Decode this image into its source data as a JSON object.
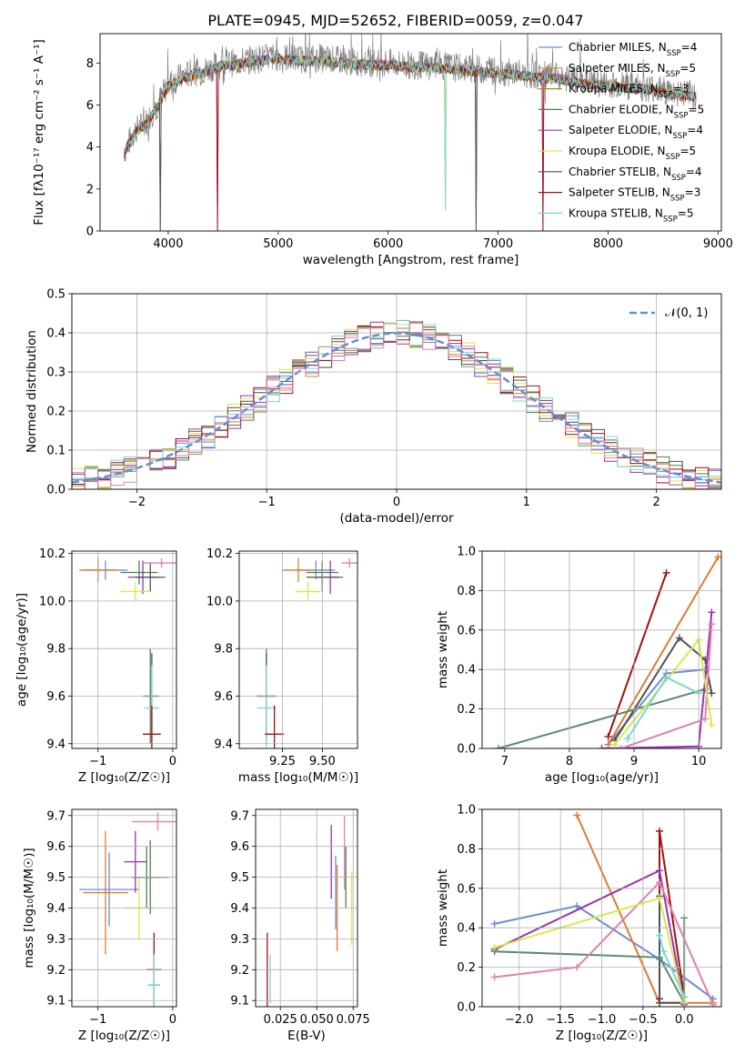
{
  "figure_title": "PLATE=0945, MJD=52652, FIBERID=0059, z=0.047",
  "colors": {
    "series": [
      "#6a8fd6",
      "#e07b2e",
      "#a08a2a",
      "#4e7f4e",
      "#9b30b0",
      "#d9e84a",
      "#505050",
      "#a01010",
      "#78d8d8",
      "#e080b0",
      "#5a8a6a"
    ],
    "data_spectrum": "#808080",
    "grid": "#b0b0b0",
    "normal_curve": "#5f8fd8"
  },
  "chart_data": [
    {
      "id": "spectrum",
      "type": "line",
      "title": "PLATE=0945, MJD=52652, FIBERID=0059, z=0.047",
      "xlabel": "wavelength [Angstrom, rest frame]",
      "ylabel": "Flux [fλ10⁻¹⁷ erg cm⁻² s⁻¹ A⁻¹]",
      "xlim": [
        3380,
        9030
      ],
      "ylim": [
        0,
        9.4
      ],
      "xticks": [
        "4000",
        "5000",
        "6000",
        "7000",
        "8000",
        "9000"
      ],
      "yticks": [
        "0",
        "2",
        "4",
        "6",
        "8"
      ],
      "grid": false,
      "legend_position": "right",
      "legend": [
        "Chabrier MILES, N",
        "Salpeter MILES, N",
        "Kroupa MILES, N",
        "Chabrier ELODIE, N",
        "Salpeter ELODIE, N",
        "Kroupa ELODIE, N",
        "Chabrier STELIB, N",
        "Salpeter STELIB, N",
        "Kroupa STELIB, N"
      ],
      "legend_sub": "SSP",
      "legend_n": [
        "=4",
        "=5",
        "=3",
        "=5",
        "=4",
        "=5",
        "=4",
        "=3",
        "=5"
      ],
      "continuum_x": [
        3600,
        3650,
        3700,
        3750,
        3800,
        3850,
        3900,
        3950,
        4000,
        4100,
        4200,
        4300,
        4400,
        4500,
        4600,
        4800,
        5000,
        5200,
        5400,
        5600,
        5800,
        6000,
        6200,
        6400,
        6600,
        6800,
        7000,
        7200,
        7400,
        7600,
        7800,
        8000,
        8200,
        8400,
        8600,
        8800
      ],
      "continuum_y": [
        3.8,
        4.3,
        4.8,
        5.0,
        5.2,
        5.6,
        6.0,
        6.5,
        7.0,
        7.3,
        7.5,
        7.6,
        7.8,
        8.0,
        8.0,
        8.2,
        8.3,
        8.2,
        8.2,
        8.1,
        8.0,
        8.0,
        7.9,
        7.9,
        7.8,
        7.7,
        7.6,
        7.5,
        7.4,
        7.3,
        7.1,
        7.0,
        6.9,
        6.8,
        6.6,
        6.5
      ],
      "spikes_x": [
        3930,
        4450,
        6520,
        6800,
        7410
      ],
      "spikes_y": [
        0,
        0,
        1.0,
        0,
        0
      ]
    },
    {
      "id": "residuals",
      "type": "line",
      "xlabel": "(data-model)/error",
      "ylabel": "Normed distribution",
      "xlim": [
        -2.5,
        2.5
      ],
      "ylim": [
        0,
        0.5
      ],
      "xticks": [
        "−2",
        "−1",
        "0",
        "1",
        "2"
      ],
      "yticks": [
        "0.0",
        "0.1",
        "0.2",
        "0.3",
        "0.4",
        "0.5"
      ],
      "grid": true,
      "legend": [
        "𝒩(0, 1)"
      ],
      "legend_position": "top-right",
      "bin_width": 0.1
    },
    {
      "id": "age_vs_Z",
      "type": "scatter",
      "xlabel": "Z [log₁₀(Z/Z☉)]",
      "ylabel": "age  [log₁₀(age/yr)]",
      "xlim": [
        -1.35,
        0.05
      ],
      "ylim": [
        9.38,
        10.21
      ],
      "xticks": [
        "−1",
        "0"
      ],
      "yticks": [
        "9.4",
        "9.6",
        "9.8",
        "10.0",
        "10.2"
      ],
      "grid": true,
      "points": [
        {
          "x": -0.9,
          "y": 10.13,
          "xerr": 0.3,
          "yerr": 0.04,
          "c": 0
        },
        {
          "x": -1.0,
          "y": 10.13,
          "xerr": 0.25,
          "yerr": 0.05,
          "c": 1
        },
        {
          "x": -0.45,
          "y": 10.12,
          "xerr": 0.25,
          "yerr": 0.05,
          "c": 3
        },
        {
          "x": -0.4,
          "y": 10.1,
          "xerr": 0.2,
          "yerr": 0.07,
          "c": 4
        },
        {
          "x": -0.3,
          "y": 10.1,
          "xerr": 0.2,
          "yerr": 0.06,
          "c": 6
        },
        {
          "x": -0.15,
          "y": 10.16,
          "xerr": 0.25,
          "yerr": 0.02,
          "c": 9
        },
        {
          "x": -0.5,
          "y": 10.04,
          "xerr": 0.2,
          "yerr": 0.04,
          "c": 5
        },
        {
          "x": -0.3,
          "y": 9.6,
          "xerr": 0.1,
          "yerr": 0.2,
          "c": 3
        },
        {
          "x": -0.28,
          "y": 9.6,
          "xerr": 0.1,
          "yerr": 0.18,
          "c": 6
        },
        {
          "x": -0.28,
          "y": 9.55,
          "xerr": 0.1,
          "yerr": 0.18,
          "c": 8
        },
        {
          "x": -0.28,
          "y": 9.44,
          "xerr": 0.12,
          "yerr": 0.12,
          "c": 7
        }
      ]
    },
    {
      "id": "age_vs_mass",
      "type": "scatter",
      "xlabel": "mass [log₁₀(M/M☉)]",
      "xlim": [
        8.98,
        9.72
      ],
      "ylim": [
        9.38,
        10.21
      ],
      "xticks": [
        "9.25",
        "9.50"
      ],
      "yticks": [
        "9.4",
        "9.6",
        "9.8",
        "10.0",
        "10.2"
      ],
      "grid": true,
      "points": [
        {
          "x": 9.46,
          "y": 10.13,
          "xerr": 0.12,
          "yerr": 0.04,
          "c": 0
        },
        {
          "x": 9.35,
          "y": 10.13,
          "xerr": 0.1,
          "yerr": 0.05,
          "c": 1
        },
        {
          "x": 9.5,
          "y": 10.12,
          "xerr": 0.1,
          "yerr": 0.05,
          "c": 3
        },
        {
          "x": 9.55,
          "y": 10.1,
          "xerr": 0.08,
          "yerr": 0.07,
          "c": 4
        },
        {
          "x": 9.5,
          "y": 10.1,
          "xerr": 0.1,
          "yerr": 0.06,
          "c": 6
        },
        {
          "x": 9.67,
          "y": 10.16,
          "xerr": 0.05,
          "yerr": 0.02,
          "c": 9
        },
        {
          "x": 9.41,
          "y": 10.04,
          "xerr": 0.08,
          "yerr": 0.04,
          "c": 5
        },
        {
          "x": 9.15,
          "y": 9.6,
          "xerr": 0.06,
          "yerr": 0.2,
          "c": 3
        },
        {
          "x": 9.15,
          "y": 9.6,
          "xerr": 0.06,
          "yerr": 0.18,
          "c": 6
        },
        {
          "x": 9.15,
          "y": 9.55,
          "xerr": 0.06,
          "yerr": 0.18,
          "c": 8
        },
        {
          "x": 9.2,
          "y": 9.44,
          "xerr": 0.06,
          "yerr": 0.12,
          "c": 7
        }
      ]
    },
    {
      "id": "weight_vs_age",
      "type": "line",
      "xlabel": "age  [log₁₀(age/yr)]",
      "ylabel": "mass weight",
      "xlim": [
        6.65,
        10.35
      ],
      "ylim": [
        0,
        1.0
      ],
      "xticks": [
        "7",
        "8",
        "9",
        "10"
      ],
      "yticks": [
        "0.0",
        "0.2",
        "0.4",
        "0.6",
        "0.8",
        "1.0"
      ],
      "grid": true,
      "series": [
        {
          "c": 0,
          "x": [
            8.6,
            9.5,
            10.1
          ],
          "y": [
            0.02,
            0.38,
            0.4
          ]
        },
        {
          "c": 1,
          "x": [
            8.6,
            10.3
          ],
          "y": [
            0.02,
            0.97
          ]
        },
        {
          "c": 7,
          "x": [
            8.6,
            9.5
          ],
          "y": [
            0.06,
            0.89
          ]
        },
        {
          "c": 6,
          "x": [
            8.7,
            9.7,
            10.1,
            10.2
          ],
          "y": [
            0.04,
            0.56,
            0.45,
            0.28
          ]
        },
        {
          "c": 10,
          "x": [
            6.9,
            10.1
          ],
          "y": [
            0.0,
            0.3
          ]
        },
        {
          "c": 4,
          "x": [
            8.5,
            10.0,
            10.2
          ],
          "y": [
            0.0,
            0.01,
            0.69
          ]
        },
        {
          "c": 9,
          "x": [
            8.8,
            10.1,
            10.2
          ],
          "y": [
            0.0,
            0.15,
            0.63
          ]
        },
        {
          "c": 5,
          "x": [
            8.7,
            10.0,
            10.2
          ],
          "y": [
            0.02,
            0.55,
            0.12
          ]
        },
        {
          "c": 8,
          "x": [
            8.9,
            9.5,
            10.0
          ],
          "y": [
            0.05,
            0.36,
            0.28
          ]
        }
      ]
    },
    {
      "id": "mass_vs_Z",
      "type": "scatter",
      "xlabel": "Z [log₁₀(Z/Z☉)]",
      "ylabel": "mass [log₁₀(M/M☉)]",
      "xlim": [
        -1.35,
        0.05
      ],
      "ylim": [
        9.08,
        9.72
      ],
      "xticks": [
        "−1",
        "0"
      ],
      "yticks": [
        "9.1",
        "9.2",
        "9.3",
        "9.4",
        "9.5",
        "9.6",
        "9.7"
      ],
      "grid": true,
      "points": [
        {
          "x": -0.85,
          "y": 9.46,
          "xerr": 0.4,
          "yerr": 0.12,
          "c": 0
        },
        {
          "x": -0.9,
          "y": 9.45,
          "xerr": 0.3,
          "yerr": 0.2,
          "c": 1
        },
        {
          "x": -0.45,
          "y": 9.4,
          "xerr": 0.2,
          "yerr": 0.1,
          "c": 5
        },
        {
          "x": -0.35,
          "y": 9.5,
          "xerr": 0.2,
          "yerr": 0.1,
          "c": 3
        },
        {
          "x": -0.3,
          "y": 9.5,
          "xerr": 0.25,
          "yerr": 0.12,
          "c": 3
        },
        {
          "x": -0.5,
          "y": 9.55,
          "xerr": 0.15,
          "yerr": 0.1,
          "c": 4
        },
        {
          "x": -0.2,
          "y": 9.68,
          "xerr": 0.35,
          "yerr": 0.03,
          "c": 9
        },
        {
          "x": -0.25,
          "y": 9.2,
          "xerr": 0.1,
          "yerr": 0.12,
          "c": 7
        },
        {
          "x": -0.25,
          "y": 9.15,
          "xerr": 0.08,
          "yerr": 0.1,
          "c": 6
        },
        {
          "x": -0.25,
          "y": 9.15,
          "xerr": 0.08,
          "yerr": 0.1,
          "c": 8
        }
      ]
    },
    {
      "id": "mass_vs_EBV",
      "type": "scatter",
      "xlabel": "E(B-V)",
      "xlim": [
        0.008,
        0.078
      ],
      "ylim": [
        9.08,
        9.72
      ],
      "xticks": [
        "0.025",
        "0.050",
        "0.075"
      ],
      "yticks": [
        "9.1",
        "9.2",
        "9.3",
        "9.4",
        "9.5",
        "9.6",
        "9.7"
      ],
      "grid": true,
      "points": [
        {
          "x": 0.016,
          "y": 9.2,
          "yerr": 0.12,
          "c": 7
        },
        {
          "x": 0.018,
          "y": 9.17,
          "yerr": 0.08,
          "c": 8
        },
        {
          "x": 0.06,
          "y": 9.55,
          "yerr": 0.12,
          "c": 4
        },
        {
          "x": 0.063,
          "y": 9.45,
          "yerr": 0.12,
          "c": 0
        },
        {
          "x": 0.064,
          "y": 9.4,
          "yerr": 0.14,
          "c": 1
        },
        {
          "x": 0.069,
          "y": 9.58,
          "yerr": 0.12,
          "c": 9
        },
        {
          "x": 0.07,
          "y": 9.5,
          "yerr": 0.1,
          "c": 3
        },
        {
          "x": 0.074,
          "y": 9.4,
          "yerr": 0.12,
          "c": 5
        }
      ]
    },
    {
      "id": "weight_vs_Z",
      "type": "line",
      "xlabel": "Z [log₁₀(Z/Z☉)]",
      "ylabel": "mass weight",
      "xlim": [
        -2.45,
        0.45
      ],
      "ylim": [
        0,
        1.0
      ],
      "xticks": [
        "−2.0",
        "−1.5",
        "−1.0",
        "−0.5",
        "0.0"
      ],
      "yticks": [
        "0.0",
        "0.2",
        "0.4",
        "0.6",
        "0.8",
        "1.0"
      ],
      "grid": true,
      "series": [
        {
          "c": 0,
          "x": [
            -2.3,
            -1.3,
            -0.3,
            0.35
          ],
          "y": [
            0.42,
            0.51,
            0.24,
            0.04
          ]
        },
        {
          "c": 1,
          "x": [
            -1.3,
            -0.3,
            0.35
          ],
          "y": [
            0.97,
            0.02,
            0.02
          ]
        },
        {
          "c": 7,
          "x": [
            -0.3,
            -0.3,
            0.0
          ],
          "y": [
            0.04,
            0.89,
            0.05
          ]
        },
        {
          "c": 6,
          "x": [
            -0.3,
            -0.3,
            0.0
          ],
          "y": [
            0.56,
            0.02,
            0.02
          ]
        },
        {
          "c": 10,
          "x": [
            -2.3,
            -0.3,
            0.0,
            0.0
          ],
          "y": [
            0.28,
            0.25,
            0.02,
            0.45
          ]
        },
        {
          "c": 4,
          "x": [
            -2.3,
            -0.3,
            0.0
          ],
          "y": [
            0.29,
            0.69,
            0.01
          ]
        },
        {
          "c": 9,
          "x": [
            -2.3,
            -1.3,
            -0.3,
            0.35
          ],
          "y": [
            0.15,
            0.2,
            0.63,
            0.01
          ]
        },
        {
          "c": 5,
          "x": [
            -2.3,
            -0.3,
            0.0
          ],
          "y": [
            0.3,
            0.55,
            0.02
          ]
        },
        {
          "c": 8,
          "x": [
            -0.3,
            -0.25,
            0.0
          ],
          "y": [
            0.36,
            0.28,
            0.05
          ]
        }
      ]
    }
  ]
}
